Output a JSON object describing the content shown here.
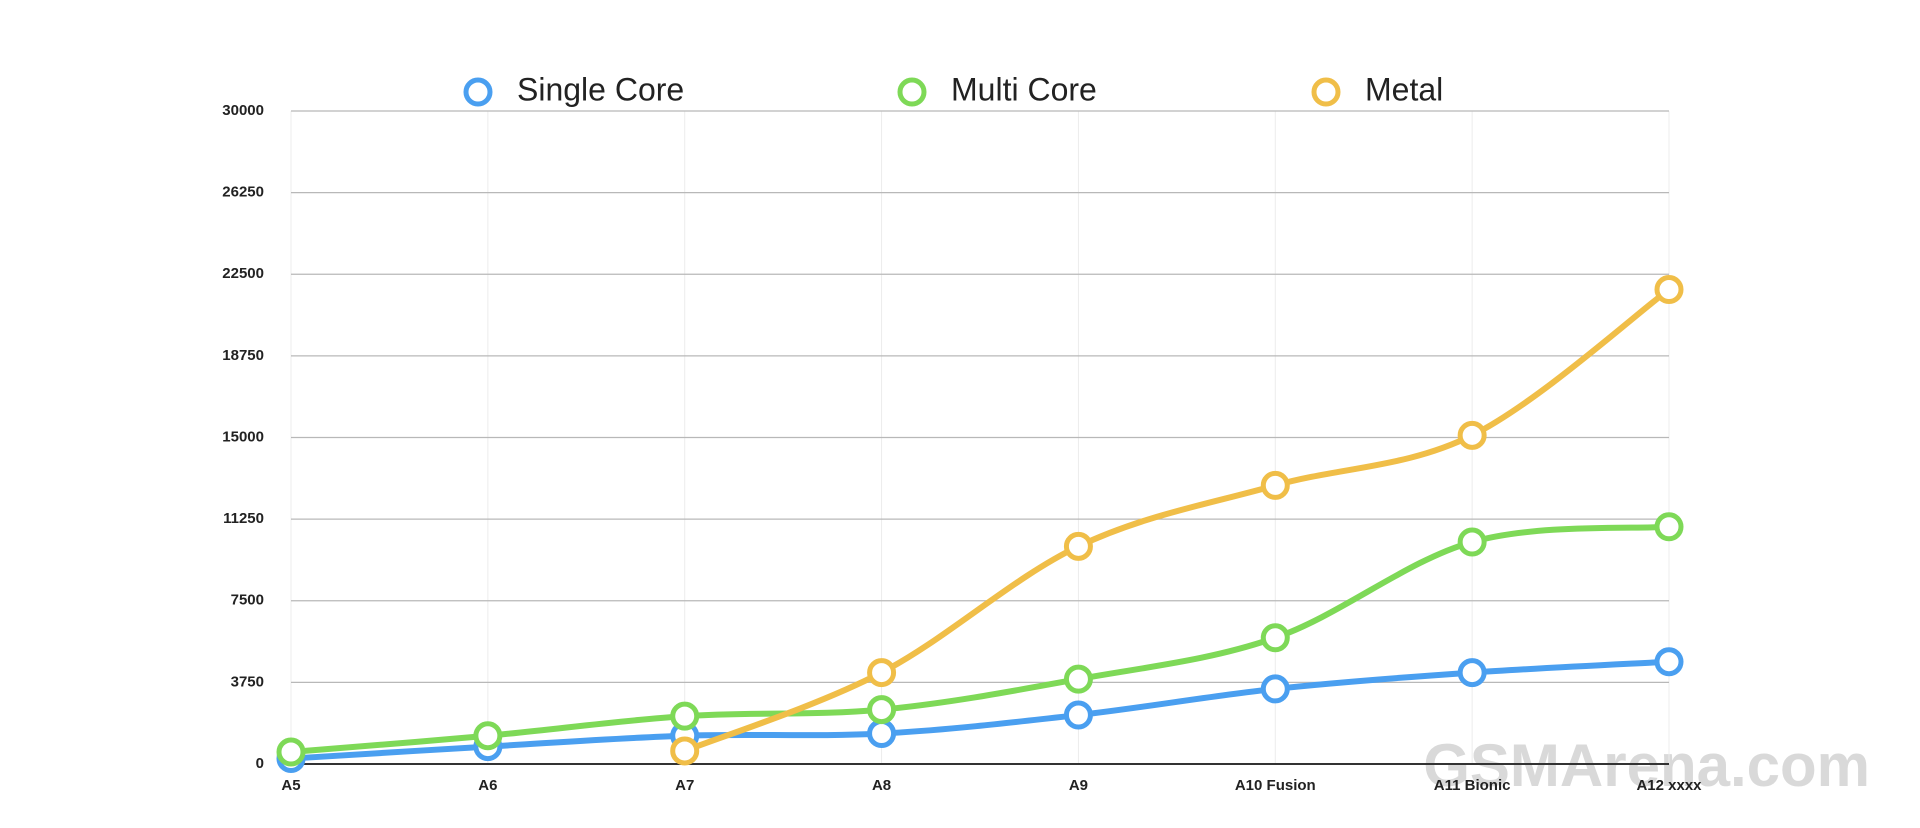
{
  "chart_data": {
    "type": "line",
    "categories": [
      "A5",
      "A6",
      "A7",
      "A8",
      "A9",
      "A10 Fusion",
      "A11 Bionic",
      "A12 xxxx"
    ],
    "series": [
      {
        "name": "Single Core",
        "color": "#4a9ff0",
        "values": [
          250,
          800,
          1300,
          1400,
          2250,
          3450,
          4200,
          4700
        ]
      },
      {
        "name": "Multi Core",
        "color": "#7ed957",
        "values": [
          550,
          1300,
          2200,
          2500,
          3900,
          5800,
          10200,
          10900
        ]
      },
      {
        "name": "Metal",
        "color": "#f0be48",
        "values": [
          null,
          null,
          600,
          4200,
          10000,
          12800,
          15100,
          21800
        ]
      }
    ],
    "ylim": [
      0,
      30000
    ],
    "yticks": [
      0,
      3750,
      7500,
      11250,
      15000,
      18750,
      22500,
      26250,
      30000
    ],
    "grid": true,
    "legend": "top",
    "watermark": "GSMArena.com"
  }
}
